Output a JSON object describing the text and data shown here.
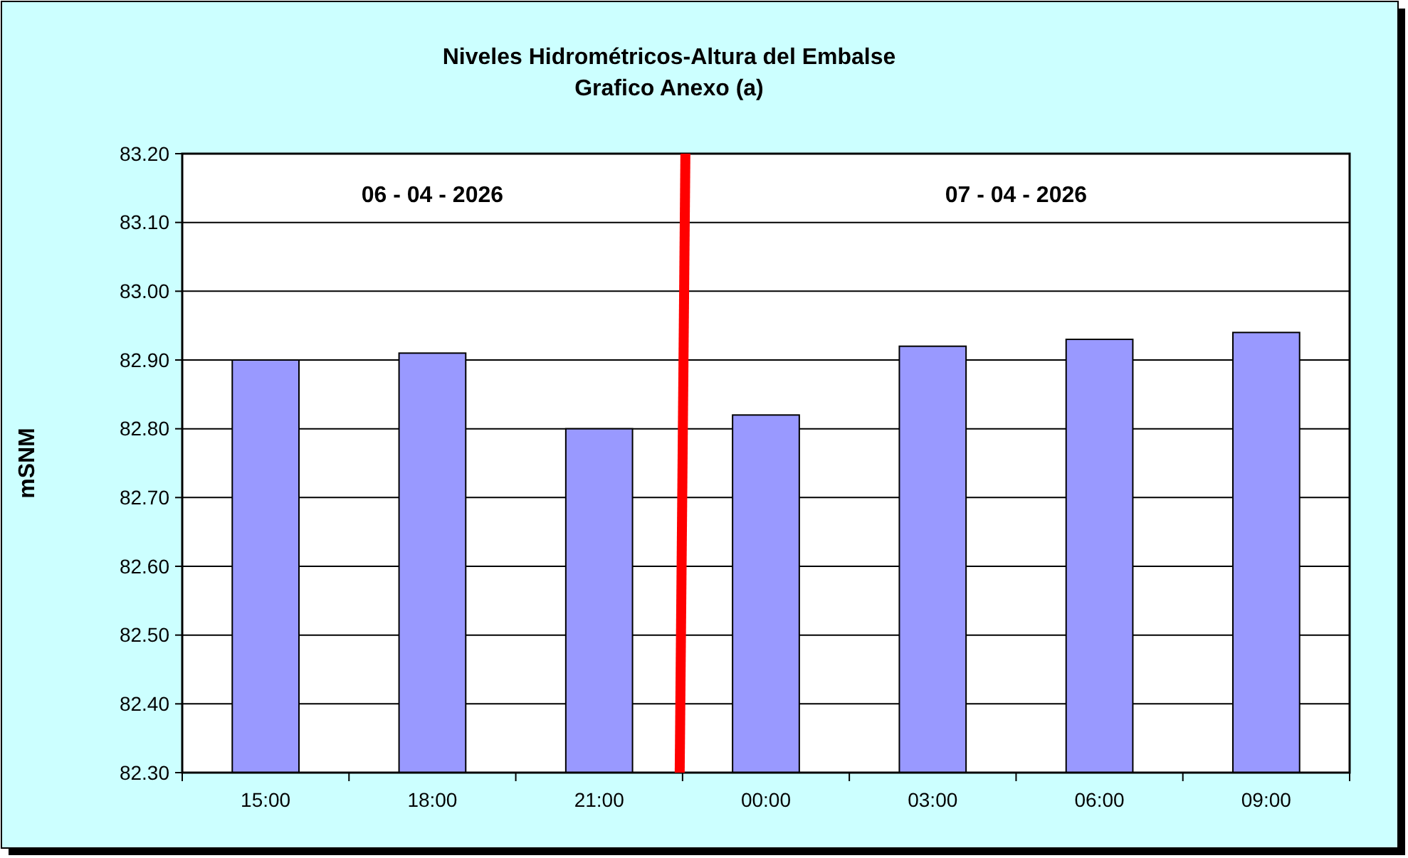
{
  "chart_data": {
    "type": "bar",
    "title": "Niveles Hidrométricos-Altura del Embalse",
    "subtitle": "Grafico Anexo (a)",
    "ylabel": "mSNM",
    "categories": [
      "15:00",
      "18:00",
      "21:00",
      "00:00",
      "03:00",
      "06:00",
      "09:00"
    ],
    "values": [
      82.9,
      82.91,
      82.8,
      82.82,
      82.92,
      82.93,
      82.94
    ],
    "color": "#9999ff",
    "ylim": [
      82.3,
      83.2
    ],
    "yticks": [
      {
        "value": 82.3,
        "label": "82.30"
      },
      {
        "value": 82.4,
        "label": "82.40"
      },
      {
        "value": 82.5,
        "label": "82.50"
      },
      {
        "value": 82.6,
        "label": "82.60"
      },
      {
        "value": 82.7,
        "label": "82.70"
      },
      {
        "value": 82.8,
        "label": "82.80"
      },
      {
        "value": 82.9,
        "label": "82.90"
      },
      {
        "value": 83.0,
        "label": "83.00"
      },
      {
        "value": 83.1,
        "label": "83.10"
      },
      {
        "value": 83.2,
        "label": "83.20"
      }
    ],
    "grid": "y",
    "annotations": [
      "06 - 04 - 2026",
      "07 - 04 - 2026"
    ]
  }
}
